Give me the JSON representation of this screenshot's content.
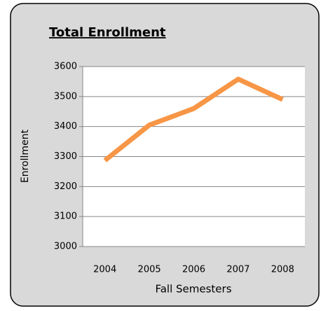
{
  "chart_data": {
    "type": "line",
    "title": "Total Enrollment",
    "x_label": "Fall Semesters",
    "y_label": "Enrollment",
    "categories": [
      "2004",
      "2005",
      "2006",
      "2007",
      "2008"
    ],
    "series": [
      {
        "name": "Enrollment",
        "color": "#f79646",
        "values": [
          3287,
          3405,
          3460,
          3558,
          3490
        ]
      }
    ],
    "ylim": [
      3000,
      3600
    ],
    "yticks": [
      3000,
      3100,
      3200,
      3300,
      3400,
      3500,
      3600
    ],
    "grid": true
  }
}
